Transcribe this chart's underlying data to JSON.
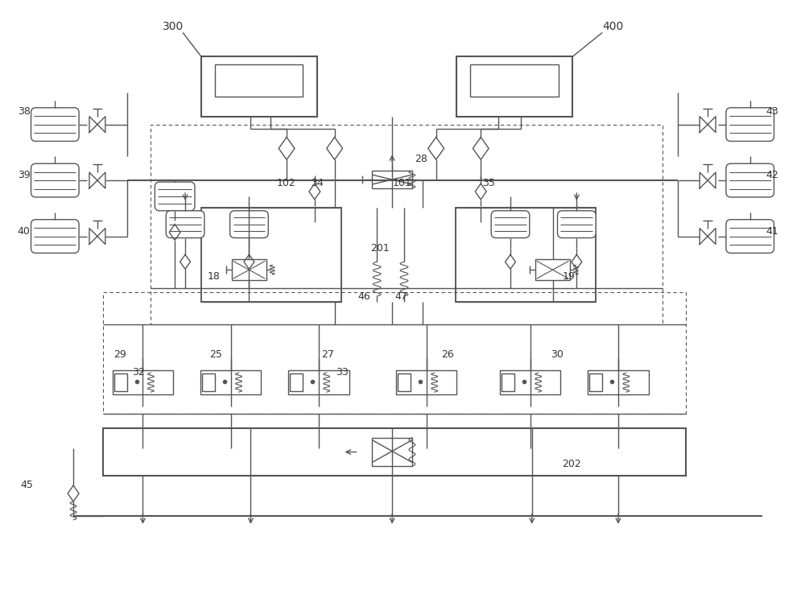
{
  "bg_color": "#ffffff",
  "lc": "#555555",
  "lw": 1.0,
  "tlw": 1.5,
  "fig_w": 10.0,
  "fig_h": 7.33,
  "xmin": 0,
  "xmax": 1000,
  "ymin": 0,
  "ymax": 733
}
